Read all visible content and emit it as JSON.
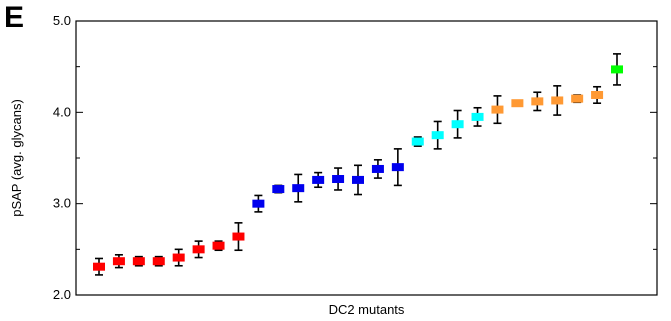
{
  "panel_label": "E",
  "chart_data": {
    "type": "scatter",
    "xlabel": "DC2 mutants",
    "ylabel": "pSAP (avg. glycans)",
    "ylim": [
      2.0,
      5.0
    ],
    "yticks": [
      2.0,
      3.0,
      4.0,
      5.0
    ],
    "ytick_labels": [
      "2.0",
      "3.0",
      "4.0",
      "5.0"
    ],
    "y_minor_ticks": [
      2.5,
      3.5,
      4.5
    ],
    "x_tick_labels_shown": false,
    "grid": false,
    "legend": "none",
    "marker": "square",
    "error_bars": true,
    "colors": {
      "red": "#ff0000",
      "blue": "#0000ee",
      "cyan": "#00ffff",
      "orange": "#ff9933",
      "green": "#00ff00"
    },
    "points": [
      {
        "color": "red",
        "y": 2.31,
        "err": 0.09
      },
      {
        "color": "red",
        "y": 2.37,
        "err": 0.07
      },
      {
        "color": "red",
        "y": 2.37,
        "err": 0.05
      },
      {
        "color": "red",
        "y": 2.37,
        "err": 0.05
      },
      {
        "color": "red",
        "y": 2.41,
        "err": 0.09
      },
      {
        "color": "red",
        "y": 2.5,
        "err": 0.09
      },
      {
        "color": "red",
        "y": 2.54,
        "err": 0.05
      },
      {
        "color": "red",
        "y": 2.64,
        "err": 0.15
      },
      {
        "color": "blue",
        "y": 3.0,
        "err": 0.09
      },
      {
        "color": "blue",
        "y": 3.16,
        "err": 0.04
      },
      {
        "color": "blue",
        "y": 3.17,
        "err": 0.15
      },
      {
        "color": "blue",
        "y": 3.26,
        "err": 0.08
      },
      {
        "color": "blue",
        "y": 3.27,
        "err": 0.12
      },
      {
        "color": "blue",
        "y": 3.26,
        "err": 0.16
      },
      {
        "color": "blue",
        "y": 3.38,
        "err": 0.1
      },
      {
        "color": "blue",
        "y": 3.4,
        "err": 0.2
      },
      {
        "color": "cyan",
        "y": 3.68,
        "err": 0.05
      },
      {
        "color": "cyan",
        "y": 3.75,
        "err": 0.15
      },
      {
        "color": "cyan",
        "y": 3.87,
        "err": 0.15
      },
      {
        "color": "cyan",
        "y": 3.95,
        "err": 0.1
      },
      {
        "color": "orange",
        "y": 4.03,
        "err": 0.15
      },
      {
        "color": "orange",
        "y": 4.1,
        "err": 0.02
      },
      {
        "color": "orange",
        "y": 4.12,
        "err": 0.1
      },
      {
        "color": "orange",
        "y": 4.13,
        "err": 0.16
      },
      {
        "color": "orange",
        "y": 4.15,
        "err": 0.04
      },
      {
        "color": "orange",
        "y": 4.19,
        "err": 0.09
      },
      {
        "color": "green",
        "y": 4.47,
        "err": 0.17
      }
    ]
  }
}
